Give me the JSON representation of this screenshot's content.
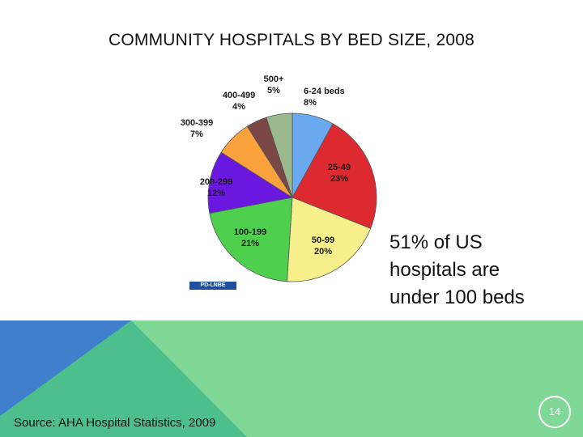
{
  "slide": {
    "title": "COMMUNITY HOSPITALS BY BED SIZE, 2008",
    "note_lines": [
      "51% of US",
      "hospitals are",
      "under 100 beds"
    ],
    "source": "Source:  AHA Hospital Statistics, 2009",
    "page_number": "14",
    "logo_text": "PD-LNBE"
  },
  "colors": {
    "footer_green": "#7fd896",
    "footer_teal": "#4dbf8c",
    "footer_blue": "#3f7fcc"
  },
  "chart_data": {
    "type": "pie",
    "title": "",
    "slices": [
      {
        "category": "6-24 beds",
        "value": 8,
        "label": "8%",
        "color": "#6aa9f0"
      },
      {
        "category": "25-49",
        "value": 23,
        "label": "23%",
        "color": "#dd2a30"
      },
      {
        "category": "50-99",
        "value": 20,
        "label": "20%",
        "color": "#f7ef8c"
      },
      {
        "category": "100-199",
        "value": 21,
        "label": "21%",
        "color": "#4ed04e"
      },
      {
        "category": "200-299",
        "value": 12,
        "label": "12%",
        "color": "#6a18e0"
      },
      {
        "category": "300-399",
        "value": 7,
        "label": "7%",
        "color": "#f9a23c"
      },
      {
        "category": "400-499",
        "value": 4,
        "label": "4%",
        "color": "#7b4646"
      },
      {
        "category": "500+",
        "value": 5,
        "label": "5%",
        "color": "#9ab98c"
      }
    ]
  }
}
